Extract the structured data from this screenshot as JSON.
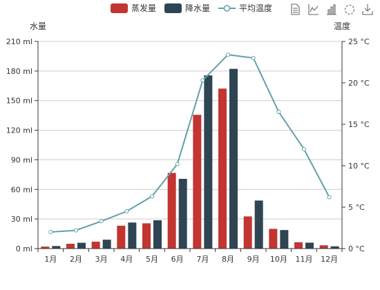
{
  "colors": {
    "evaporation": "#c23531",
    "precipitation": "#2f4554",
    "temperature": "#61a0a8",
    "axis": "#333333",
    "grid": "#cccccc"
  },
  "toolbox": {
    "icons": [
      "data-view-icon",
      "line-chart-icon",
      "bar-chart-icon",
      "restore-icon",
      "save-image-icon"
    ]
  },
  "chart_data": {
    "type": "bar",
    "categories": [
      "1月",
      "2月",
      "3月",
      "4月",
      "5月",
      "6月",
      "7月",
      "8月",
      "9月",
      "10月",
      "11月",
      "12月"
    ],
    "series": [
      {
        "name": "蒸发量",
        "type": "bar",
        "yAxis": 0,
        "values": [
          2.0,
          4.9,
          7.0,
          23.2,
          25.6,
          76.7,
          135.6,
          162.2,
          32.6,
          20.0,
          6.4,
          3.3
        ]
      },
      {
        "name": "降水量",
        "type": "bar",
        "yAxis": 0,
        "values": [
          2.6,
          5.9,
          9.0,
          26.4,
          28.7,
          70.7,
          175.6,
          182.2,
          48.7,
          18.8,
          6.0,
          2.3
        ]
      },
      {
        "name": "平均温度",
        "type": "line",
        "yAxis": 1,
        "values": [
          2.0,
          2.2,
          3.3,
          4.5,
          6.3,
          10.2,
          20.3,
          23.4,
          23.0,
          16.5,
          12.0,
          6.2
        ]
      }
    ],
    "yAxisLeft": {
      "label": "水量",
      "min": 0,
      "max": 210,
      "interval": 30,
      "tickLabels": [
        "0 ml",
        "30 ml",
        "60 ml",
        "90 ml",
        "120 ml",
        "150 ml",
        "180 ml",
        "210 ml"
      ]
    },
    "yAxisRight": {
      "label": "温度",
      "min": 0,
      "max": 25,
      "interval": 5,
      "tickLabels": [
        "0 °C",
        "5 °C",
        "10 °C",
        "15 °C",
        "20 °C",
        "25 °C"
      ]
    },
    "legend": {
      "position": "top-center",
      "entries": [
        "蒸发量",
        "降水量",
        "平均温度"
      ]
    },
    "grid": true
  }
}
